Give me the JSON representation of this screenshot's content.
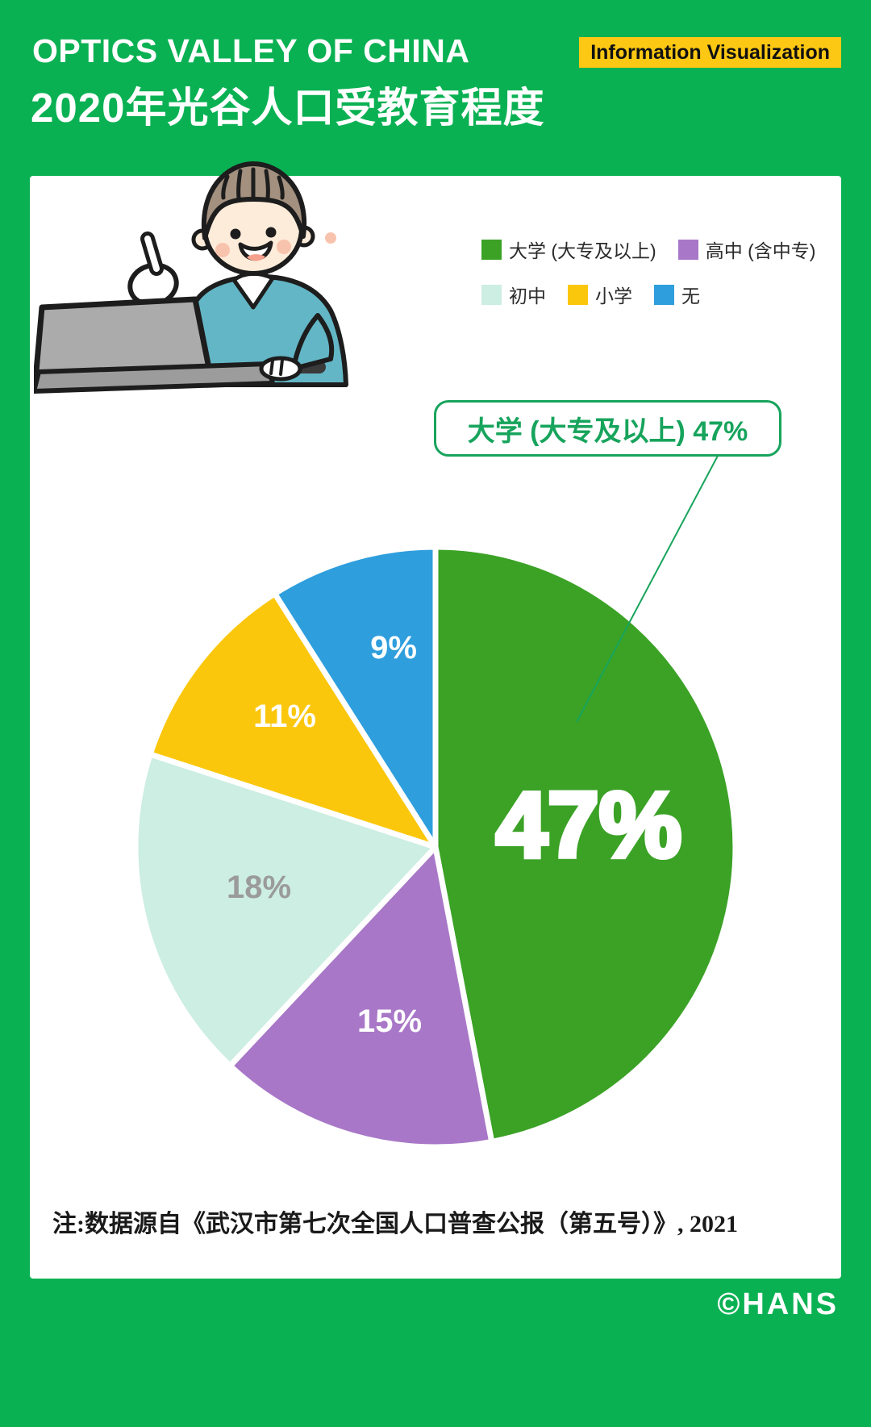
{
  "header": {
    "title_en": "OPTICS VALLEY OF CHINA",
    "badge_label": "Information Visualization",
    "title_zh": "2020年光谷人口受教育程度"
  },
  "callout": {
    "text": "大学 (大专及以上) 47%"
  },
  "chart_data": {
    "type": "pie",
    "title": "2020年光谷人口受教育程度",
    "categories": [
      "大学 (大专及以上)",
      "高中 (含中专)",
      "初中",
      "小学",
      "无"
    ],
    "values": [
      47,
      15,
      18,
      11,
      9
    ],
    "unit": "%",
    "colors": [
      "#3ba226",
      "#a877c7",
      "#cdeee2",
      "#fbc70d",
      "#2e9edd"
    ],
    "slice_label_colors": [
      "#ffffff",
      "#ffffff",
      "#9b9b9b",
      "#ffffff",
      "#ffffff"
    ],
    "start_angle_deg": 0,
    "direction": "clockwise",
    "legend_position": "top-right",
    "highlight": {
      "category": "大学 (大专及以上)",
      "value_label": "47%"
    }
  },
  "note": "注:数据源自《武汉市第七次全国人口普查公报（第五号）》, 2021",
  "footer": {
    "credit": "©HANS"
  },
  "colors": {
    "background_green": "#0ab153",
    "badge_yellow": "#fcc813",
    "card_white": "#ffffff",
    "callout_green": "#17a45c",
    "pie_big_label": "#ffffff"
  },
  "illustration": {
    "name": "person-pointing-at-laptop"
  }
}
